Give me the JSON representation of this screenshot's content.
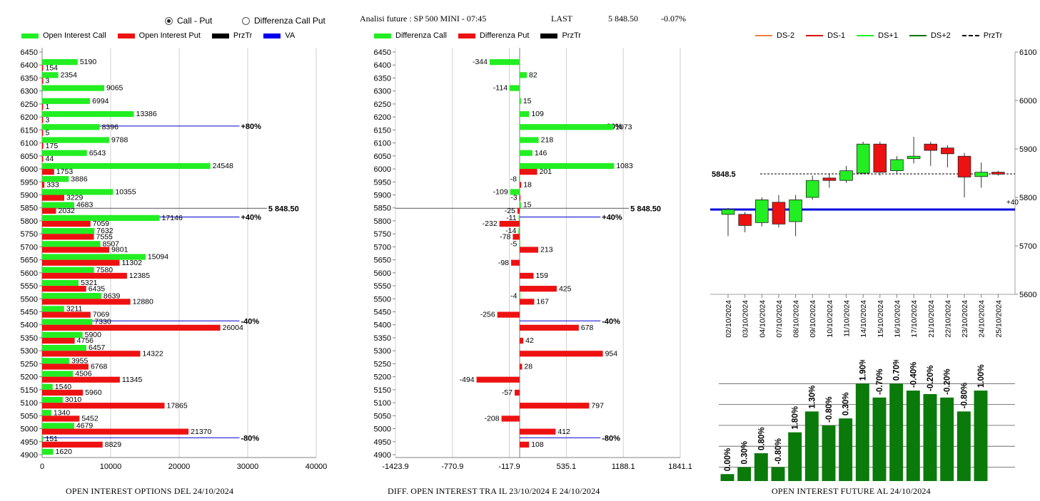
{
  "header": {
    "radio_call_put": "Call - Put",
    "radio_diff": "Differenza Call Put",
    "title": "Analisi future : SP 500 MINI - 07:45",
    "last_label": "LAST",
    "last_value": "5 848.50",
    "last_change": "-0.07%"
  },
  "legend1": {
    "a": "Open Interest Call",
    "b": "Open Interest Put",
    "c": "PrzTr",
    "d": "VA",
    "ca": "#22ee22",
    "cb": "#ee1111",
    "cc": "#000000",
    "cd": "#0000ee"
  },
  "legend2": {
    "a": "Differenza Call",
    "b": "Differenza Put",
    "c": "PrzTr"
  },
  "legend3": {
    "a": "DS-2",
    "b": "DS-1",
    "c": "DS+1",
    "d": "DS+2",
    "e": "PrzTr"
  },
  "captions": {
    "c1": "OPEN INTEREST OPTIONS DEL 24/10/2024",
    "c2": "DIFF. OPEN INTEREST TRA IL 23/10/2024 E 24/10/2024",
    "c3": "OPEN INTEREST FUTURE AL 24/10/2024"
  },
  "chart_data": [
    {
      "type": "bar",
      "orientation": "horizontal",
      "categories": [
        6450,
        6400,
        6350,
        6300,
        6250,
        6200,
        6150,
        6100,
        6050,
        6000,
        5950,
        5900,
        5850,
        5800,
        5750,
        5700,
        5650,
        5600,
        5550,
        5500,
        5450,
        5400,
        5350,
        5300,
        5250,
        5200,
        5150,
        5100,
        5050,
        5000,
        4950,
        4900
      ],
      "series": [
        {
          "name": "Open Interest Call",
          "values": [
            null,
            5190,
            2354,
            9065,
            6994,
            13386,
            8396,
            9788,
            6543,
            24548,
            3886,
            10355,
            4683,
            17146,
            7632,
            8507,
            15094,
            7580,
            5321,
            8639,
            3211,
            7330,
            5900,
            6457,
            3955,
            4506,
            1540,
            3010,
            1340,
            4679,
            151,
            1620
          ]
        },
        {
          "name": "Open Interest Put",
          "values": [
            null,
            154,
            3,
            null,
            1,
            3,
            5,
            175,
            44,
            1753,
            333,
            3229,
            2032,
            7059,
            7555,
            9801,
            11302,
            12385,
            6435,
            12880,
            7069,
            26004,
            4756,
            14322,
            6768,
            11345,
            5960,
            17865,
            5452,
            21370,
            8829,
            null
          ]
        }
      ],
      "xticks": [
        0,
        10000,
        20000,
        30000,
        40000
      ],
      "xlim": [
        0,
        40000
      ],
      "markers": [
        {
          "strike": 6150,
          "label": "+80%"
        },
        {
          "strike": 5800,
          "label": "+40%"
        },
        {
          "strike": 5400,
          "label": "-40%"
        },
        {
          "strike": 4950,
          "label": "-80%"
        }
      ],
      "last_price": {
        "value": 5848.5,
        "label": "5 848.50"
      }
    },
    {
      "type": "bar",
      "orientation": "horizontal",
      "categories": [
        6450,
        6400,
        6350,
        6300,
        6250,
        6200,
        6150,
        6100,
        6050,
        6000,
        5950,
        5900,
        5850,
        5800,
        5750,
        5700,
        5650,
        5600,
        5550,
        5500,
        5450,
        5400,
        5350,
        5300,
        5250,
        5200,
        5150,
        5100,
        5050,
        5000,
        4950,
        4900
      ],
      "series": [
        {
          "name": "Differenza Call",
          "values": [
            null,
            -344,
            82,
            -114,
            15,
            109,
            1073,
            218,
            146,
            1083,
            -8,
            -109,
            15,
            -11,
            -14,
            -5,
            null,
            null,
            null,
            -4,
            null,
            null,
            null,
            null,
            null,
            null,
            null,
            null,
            null,
            null,
            null,
            null
          ]
        },
        {
          "name": "Differenza Put",
          "values": [
            null,
            null,
            null,
            null,
            null,
            null,
            null,
            null,
            null,
            201,
            18,
            -3,
            -25,
            -232,
            -78,
            213,
            -98,
            159,
            425,
            167,
            -256,
            678,
            42,
            954,
            28,
            -494,
            -57,
            797,
            -208,
            412,
            108,
            null
          ]
        }
      ],
      "xticks": [
        -1423.9,
        -770.9,
        -117.9,
        535.1,
        1188.1,
        1841.1
      ],
      "xlim": [
        -1423.9,
        1841.1
      ],
      "markers": [
        {
          "strike": 6150,
          "label": "+80%"
        },
        {
          "strike": 5800,
          "label": "+40%"
        },
        {
          "strike": 5400,
          "label": "-40%"
        },
        {
          "strike": 4950,
          "label": "-80%"
        }
      ],
      "last_price": {
        "value": 5848.5,
        "label": "5 848.50"
      }
    },
    {
      "type": "candlestick",
      "x": [
        "02/10/2024",
        "03/10/2024",
        "04/10/2024",
        "07/10/2024",
        "08/10/2024",
        "09/10/2024",
        "10/10/2024",
        "11/10/2024",
        "14/10/2024",
        "15/10/2024",
        "16/10/2024",
        "17/10/2024",
        "21/10/2024",
        "22/10/2024",
        "23/10/2024",
        "24/10/2024",
        "25/10/2024"
      ],
      "open": [
        5765,
        5765,
        5748,
        5790,
        5750,
        5800,
        5840,
        5835,
        5850,
        5910,
        5855,
        5880,
        5910,
        5902,
        5885,
        5843,
        5852
      ],
      "close": [
        5775,
        5742,
        5795,
        5745,
        5795,
        5835,
        5835,
        5855,
        5910,
        5852,
        5878,
        5885,
        5897,
        5890,
        5842,
        5852,
        5848
      ],
      "high": [
        5778,
        5770,
        5800,
        5805,
        5805,
        5845,
        5848,
        5865,
        5915,
        5915,
        5885,
        5925,
        5915,
        5908,
        5892,
        5872,
        5855
      ],
      "low": [
        5720,
        5728,
        5740,
        5738,
        5720,
        5795,
        5820,
        5830,
        5848,
        5845,
        5848,
        5870,
        5865,
        5862,
        5800,
        5820,
        5845
      ],
      "ylim": [
        5600,
        6100
      ],
      "yticks": [
        5600,
        5700,
        5800,
        5900,
        6000,
        6100
      ],
      "przTr": {
        "value": 5848.5,
        "label": "5848.5"
      },
      "va": 5775,
      "right_label": "+40"
    },
    {
      "type": "bar",
      "categories": [
        "02/10/2024",
        "03/10/2024",
        "04/10/2024",
        "07/10/2024",
        "08/10/2024",
        "09/10/2024",
        "10/10/2024",
        "11/10/2024",
        "14/10/2024",
        "15/10/2024",
        "16/10/2024",
        "17/10/2024",
        "21/10/2024",
        "22/10/2024",
        "23/10/2024",
        "24/10/2024"
      ],
      "values": [
        0.0,
        0.3,
        0.8,
        -0.8,
        1.8,
        1.3,
        -0.8,
        0.3,
        1.9,
        -0.7,
        0.7,
        -0.4,
        -0.2,
        -0.2,
        -0.8,
        1.0
      ],
      "labels": [
        "0.00%",
        "0.30%",
        "0.80%",
        "-0.80%",
        "1.80%",
        "1.30%",
        "-0.80%",
        "0.30%",
        "1.90%",
        "-0.70%",
        "0.70%",
        "-0.40%",
        "-0.20%",
        "-0.20%",
        "-0.80%",
        "1.00%"
      ],
      "level": [
        1,
        2,
        4,
        2,
        7,
        10,
        8,
        9,
        14,
        12,
        14,
        13,
        12.5,
        12,
        10,
        13
      ],
      "ylim": [
        0,
        17
      ]
    }
  ]
}
